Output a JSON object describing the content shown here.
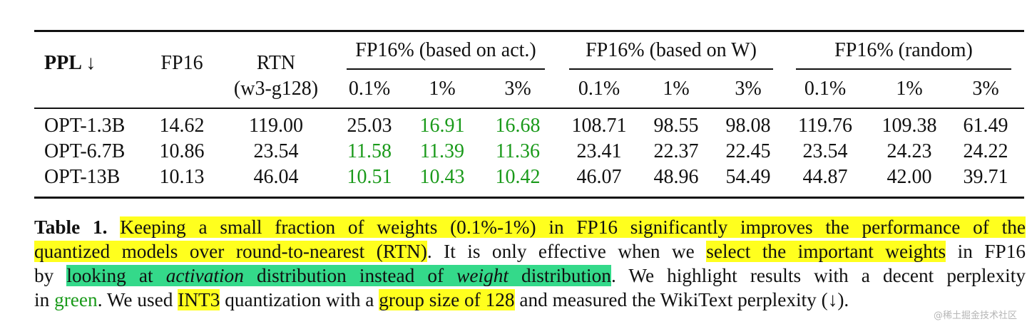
{
  "table": {
    "header": {
      "ppl": "PPL ↓",
      "fp16": "FP16",
      "rtn_line1": "RTN",
      "rtn_line2": "(w3-g128)",
      "groups": [
        "FP16% (based on act.)",
        "FP16% (based on W)",
        "FP16% (random)"
      ],
      "sub": [
        "0.1%",
        "1%",
        "3%",
        "0.1%",
        "1%",
        "3%",
        "0.1%",
        "1%",
        "3%"
      ]
    },
    "rows": [
      {
        "model": "OPT-1.3B",
        "fp16": "14.62",
        "rtn": "119.00",
        "vals": [
          "25.03",
          "16.91",
          "16.68",
          "108.71",
          "98.55",
          "98.08",
          "119.76",
          "109.38",
          "61.49"
        ],
        "green": [
          false,
          true,
          true,
          false,
          false,
          false,
          false,
          false,
          false
        ]
      },
      {
        "model": "OPT-6.7B",
        "fp16": "10.86",
        "rtn": "23.54",
        "vals": [
          "11.58",
          "11.39",
          "11.36",
          "23.41",
          "22.37",
          "22.45",
          "23.54",
          "24.23",
          "24.22"
        ],
        "green": [
          true,
          true,
          true,
          false,
          false,
          false,
          false,
          false,
          false
        ]
      },
      {
        "model": "OPT-13B",
        "fp16": "10.13",
        "rtn": "46.04",
        "vals": [
          "10.51",
          "10.43",
          "10.42",
          "46.07",
          "48.96",
          "54.49",
          "44.87",
          "42.00",
          "39.71"
        ],
        "green": [
          true,
          true,
          true,
          false,
          false,
          false,
          false,
          false,
          false
        ]
      }
    ]
  },
  "caption": {
    "label": "Table 1.",
    "l1_hl": "Keeping a small fraction of weights (0.1%-1%) in FP16 significantly improves the performance of the",
    "l2_hl": "quantized models over round-to-nearest (RTN)",
    "l2_rest": ". It is only effective when we ",
    "l2_hl2": "select the important weights",
    "l2_end": " in FP16",
    "l3_start": "by ",
    "l3_hl_a": "looking at ",
    "l3_hl_b": "activation",
    "l3_hl_c": " distribution instead of ",
    "l3_hl_d": "weight",
    "l3_hl_e": " distribution",
    "l3_end": ". We highlight results with a decent perplexity",
    "l4_start": "in ",
    "l4_green": "green",
    "l4_mid": ". We used ",
    "l4_hl": "INT3",
    "l4_mid2": " quantization with a ",
    "l4_hl2": "group size of 128",
    "l4_end": " and measured the WikiText perplexity (↓)."
  },
  "watermark": "@稀土掘金技术社区",
  "colors": {
    "green_text": "#1a9a1a",
    "yellow_highlight": "#ffff1e",
    "green_highlight": "#34d98a"
  }
}
